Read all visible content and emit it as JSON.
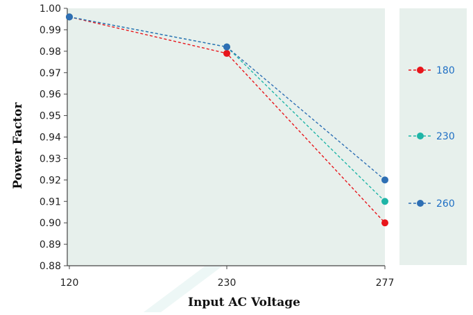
{
  "chart_data": {
    "type": "line",
    "title": "",
    "xlabel": "Input AC Voltage",
    "ylabel": "Power Factor",
    "categories": [
      "120",
      "230",
      "277"
    ],
    "ylim": [
      0.88,
      1.0
    ],
    "yticks": [
      "0.88",
      "0.89",
      "0.90",
      "0.91",
      "0.92",
      "0.93",
      "0.94",
      "0.95",
      "0.96",
      "0.97",
      "0.98",
      "0.99",
      "1.00"
    ],
    "grid": false,
    "legend_position": "right",
    "series": [
      {
        "name": "180",
        "values": [
          0.996,
          0.979,
          0.9
        ],
        "color": "#e8151b"
      },
      {
        "name": "230",
        "values": [
          0.996,
          0.982,
          0.91
        ],
        "color": "#1fb5a7"
      },
      {
        "name": "260",
        "values": [
          0.996,
          0.982,
          0.92
        ],
        "color": "#2e6fb4"
      }
    ],
    "legend_text_color": "#1f6fc4",
    "plot_background": "#e7f0ec"
  }
}
